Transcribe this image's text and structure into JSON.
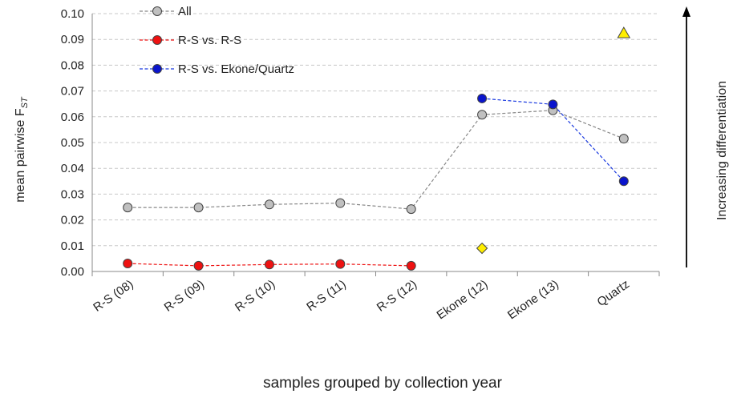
{
  "chart_data": {
    "type": "line",
    "categories": [
      "R-S (08)",
      "R-S (09)",
      "R-S (10)",
      "R-S (11)",
      "R-S (12)",
      "Ekone (12)",
      "Ekone (13)",
      "Quartz"
    ],
    "series": [
      {
        "name": "All",
        "color": "#c0c0c0",
        "line_color": "#888888",
        "values": [
          0.0248,
          0.0248,
          0.026,
          0.0265,
          0.0242,
          0.0608,
          0.0625,
          0.0515
        ]
      },
      {
        "name": "R-S vs. R-S",
        "color": "#ee1111",
        "line_color": "#ee1111",
        "values": [
          0.0031,
          0.0022,
          0.0027,
          0.0029,
          0.0022,
          null,
          null,
          null
        ]
      },
      {
        "name": "R-S vs. Ekone/Quartz",
        "color": "#0a14cc",
        "line_color": "#1a3ae0",
        "values": [
          null,
          null,
          null,
          null,
          null,
          0.0671,
          0.0648,
          0.035
        ]
      }
    ],
    "extra_markers": [
      {
        "shape": "diamond",
        "category": "Ekone (12)",
        "value": 0.009,
        "color": "#ffee00"
      },
      {
        "shape": "triangle",
        "category": "Quartz",
        "value": 0.0925,
        "color": "#ffee00"
      }
    ],
    "yticks": [
      "0.00",
      "0.01",
      "0.02",
      "0.03",
      "0.04",
      "0.05",
      "0.06",
      "0.07",
      "0.08",
      "0.09",
      "0.10"
    ],
    "ylim": [
      0,
      0.1
    ],
    "ylabel": "mean pairwise F",
    "ylabel_sub": "ST",
    "xlabel": "samples grouped by collection year",
    "right_label": "Increasing differentiation",
    "grid": true,
    "legend_position": "top-left"
  }
}
